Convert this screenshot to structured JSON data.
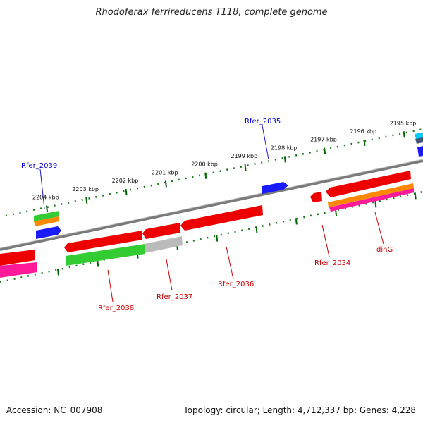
{
  "header": {
    "title": "Rhodoferax ferrireducens T118, complete genome"
  },
  "footer": {
    "accession": "Accession: NC_007908",
    "summary": "Topology: circular; Length: 4,712,337 bp; Genes: 4,228"
  },
  "scale_labels": [
    "2204 kbp",
    "2203 kbp",
    "2202 kbp",
    "2201 kbp",
    "2200 kbp",
    "2199 kbp",
    "2198 kbp",
    "2197 kbp",
    "2196 kbp",
    "2195 kbp"
  ],
  "gene_labels": [
    "Rfer_2039",
    "Rfer_2035",
    "Rfer_2038",
    "Rfer_2037",
    "Rfer_2036",
    "Rfer_2034",
    "dinG"
  ],
  "colors": {
    "cds": "#ff0000",
    "gene_blue": "#1a1aff",
    "green": "#33cc33",
    "orange": "#ff8800",
    "magenta": "#ff2299",
    "gray": "#bbbbbb",
    "cyan": "#00ccff",
    "tick": "#006600",
    "backbone": "#888888",
    "label_red": "#cc0000",
    "label_blue": "#0000cc"
  }
}
